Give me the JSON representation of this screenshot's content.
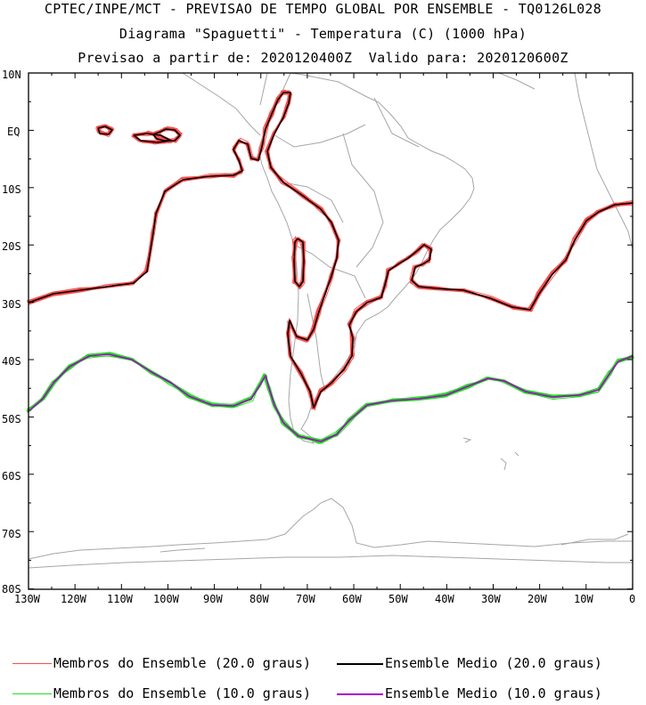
{
  "header": {
    "line1": "CPTEC/INPE/MCT - PREVISAO DE TEMPO GLOBAL POR ENSEMBLE - TQ0126L028",
    "line2": "Diagrama \"Spaguetti\" - Temperatura (C) (1000 hPa)",
    "line3": "Previsao a partir de: 2020120400Z  Valido para: 2020120600Z"
  },
  "axes": {
    "lat_labels": [
      "10N",
      "EQ",
      "10S",
      "20S",
      "30S",
      "40S",
      "50S",
      "60S",
      "70S",
      "80S"
    ],
    "lon_labels": [
      "130W",
      "120W",
      "110W",
      "100W",
      "90W",
      "80W",
      "70W",
      "60W",
      "50W",
      "40W",
      "30W",
      "20W",
      "10W",
      "0"
    ]
  },
  "legend": {
    "members20": "Membros do Ensemble (20.0 graus)",
    "mean20": "Ensemble Medio (20.0 graus)",
    "members10": "Membros do Ensemble (10.0 graus)",
    "mean10": "Ensemble Medio (10.0 graus)"
  },
  "colors": {
    "members20": "#ff4a4a",
    "mean20": "#000000",
    "members10": "#22dd22",
    "mean10": "#aa00cc",
    "coast": "#a6a6a6"
  }
}
